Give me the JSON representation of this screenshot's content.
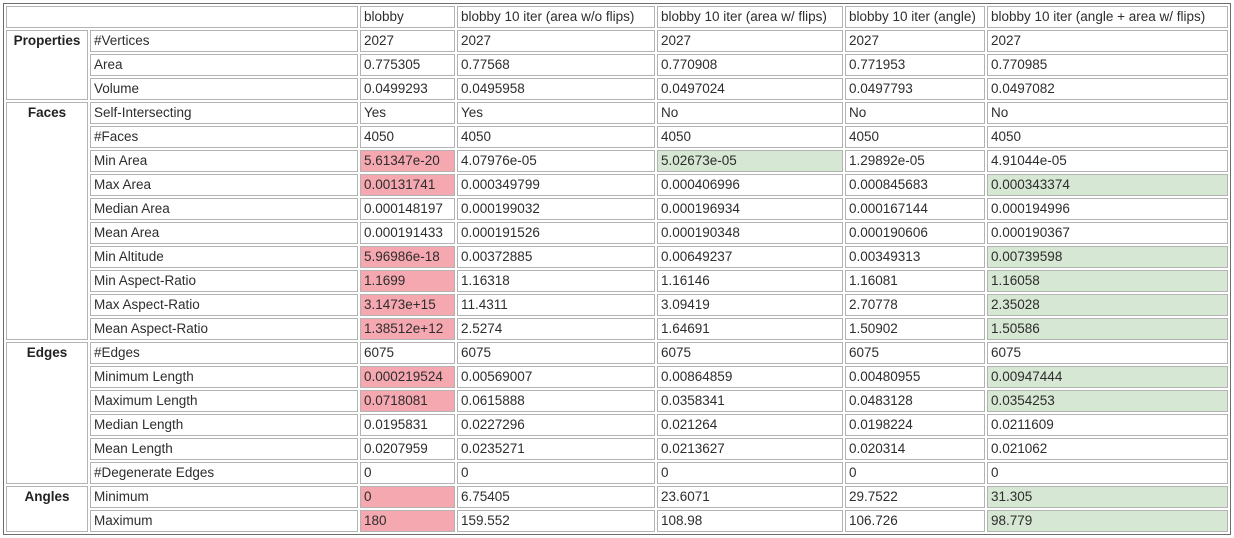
{
  "table": {
    "corner_label": "",
    "colors": {
      "bad": "#f6a8b1",
      "good": "#d6e7d3"
    },
    "columns": [
      "blobby",
      "blobby 10 iter (area w/o flips)",
      "blobby 10 iter (area w/ flips)",
      "blobby 10 iter (angle)",
      "blobby 10 iter (angle + area w/ flips)"
    ],
    "sections": [
      {
        "name": "Properties",
        "rows": [
          {
            "label": "#Vertices",
            "values": [
              "2027",
              "2027",
              "2027",
              "2027",
              "2027"
            ]
          },
          {
            "label": "Area",
            "values": [
              "0.775305",
              "0.77568",
              "0.770908",
              "0.771953",
              "0.770985"
            ]
          },
          {
            "label": "Volume",
            "values": [
              "0.0499293",
              "0.0495958",
              "0.0497024",
              "0.0497793",
              "0.0497082"
            ]
          }
        ]
      },
      {
        "name": "Faces",
        "rows": [
          {
            "label": "Self-Intersecting",
            "values": [
              "Yes",
              "Yes",
              "No",
              "No",
              "No"
            ]
          },
          {
            "label": "#Faces",
            "values": [
              "4050",
              "4050",
              "4050",
              "4050",
              "4050"
            ]
          },
          {
            "label": "Min Area",
            "values": [
              "5.61347e-20",
              "4.07976e-05",
              "5.02673e-05",
              "1.29892e-05",
              "4.91044e-05"
            ],
            "hl": [
              "red",
              null,
              "green",
              null,
              null
            ]
          },
          {
            "label": "Max Area",
            "values": [
              "0.00131741",
              "0.000349799",
              "0.000406996",
              "0.000845683",
              "0.000343374"
            ],
            "hl": [
              "red",
              null,
              null,
              null,
              "green"
            ]
          },
          {
            "label": "Median Area",
            "values": [
              "0.000148197",
              "0.000199032",
              "0.000196934",
              "0.000167144",
              "0.000194996"
            ]
          },
          {
            "label": "Mean Area",
            "values": [
              "0.000191433",
              "0.000191526",
              "0.000190348",
              "0.000190606",
              "0.000190367"
            ]
          },
          {
            "label": "Min Altitude",
            "values": [
              "5.96986e-18",
              "0.00372885",
              "0.00649237",
              "0.00349313",
              "0.00739598"
            ],
            "hl": [
              "red",
              null,
              null,
              null,
              "green"
            ]
          },
          {
            "label": "Min Aspect-Ratio",
            "values": [
              "1.1699",
              "1.16318",
              "1.16146",
              "1.16081",
              "1.16058"
            ],
            "hl": [
              "red",
              null,
              null,
              null,
              "green"
            ]
          },
          {
            "label": "Max Aspect-Ratio",
            "values": [
              "3.1473e+15",
              "11.4311",
              "3.09419",
              "2.70778",
              "2.35028"
            ],
            "hl": [
              "red",
              null,
              null,
              null,
              "green"
            ]
          },
          {
            "label": "Mean Aspect-Ratio",
            "values": [
              "1.38512e+12",
              "2.5274",
              "1.64691",
              "1.50902",
              "1.50586"
            ],
            "hl": [
              "red",
              null,
              null,
              null,
              "green"
            ]
          }
        ]
      },
      {
        "name": "Edges",
        "rows": [
          {
            "label": "#Edges",
            "values": [
              "6075",
              "6075",
              "6075",
              "6075",
              "6075"
            ]
          },
          {
            "label": "Minimum Length",
            "values": [
              "0.000219524",
              "0.00569007",
              "0.00864859",
              "0.00480955",
              "0.00947444"
            ],
            "hl": [
              "red",
              null,
              null,
              null,
              "green"
            ]
          },
          {
            "label": "Maximum Length",
            "values": [
              "0.0718081",
              "0.0615888",
              "0.0358341",
              "0.0483128",
              "0.0354253"
            ],
            "hl": [
              "red",
              null,
              null,
              null,
              "green"
            ]
          },
          {
            "label": "Median Length",
            "values": [
              "0.0195831",
              "0.0227296",
              "0.021264",
              "0.0198224",
              "0.0211609"
            ]
          },
          {
            "label": "Mean Length",
            "values": [
              "0.0207959",
              "0.0235271",
              "0.0213627",
              "0.020314",
              "0.021062"
            ]
          },
          {
            "label": "#Degenerate Edges",
            "values": [
              "0",
              "0",
              "0",
              "0",
              "0"
            ]
          }
        ]
      },
      {
        "name": "Angles",
        "rows": [
          {
            "label": "Minimum",
            "values": [
              "0",
              "6.75405",
              "23.6071",
              "29.7522",
              "31.305"
            ],
            "hl": [
              "red",
              null,
              null,
              null,
              "green"
            ]
          },
          {
            "label": "Maximum",
            "values": [
              "180",
              "159.552",
              "108.98",
              "106.726",
              "98.779"
            ],
            "hl": [
              "red",
              null,
              null,
              null,
              "green"
            ]
          }
        ]
      }
    ]
  }
}
